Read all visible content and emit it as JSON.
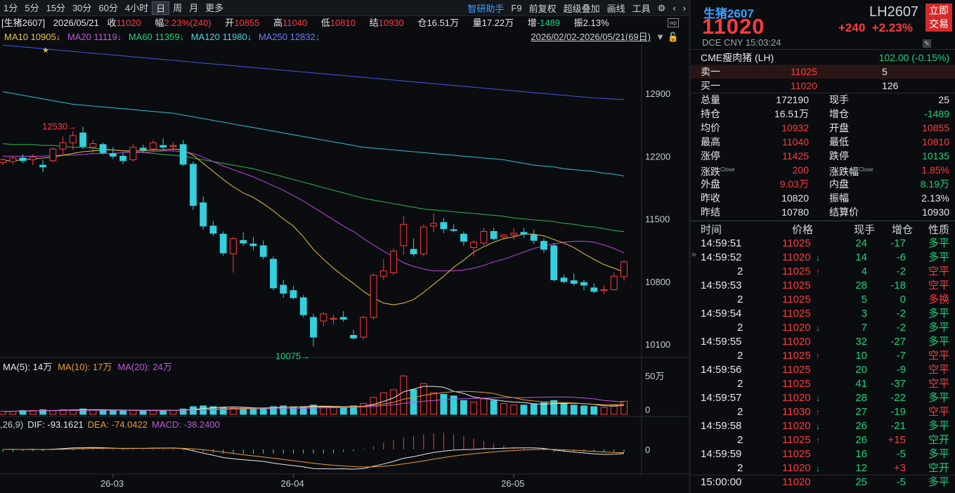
{
  "toolbar": {
    "timeframes": [
      "1分",
      "5分",
      "15分",
      "30分",
      "60分",
      "4小时",
      "日",
      "周",
      "月",
      "更多"
    ],
    "active": "日",
    "tools": [
      "智研助手",
      "F9",
      "前复权",
      "超级叠加",
      "画线",
      "工具"
    ]
  },
  "info": {
    "name": "[生猪2607]",
    "date": "2026/05/21",
    "close_label": "收",
    "close": "11020",
    "amp_label": "幅",
    "amp": "2.23%(240)",
    "open_label": "开",
    "open": "10855",
    "high_label": "高",
    "high": "11040",
    "low_label": "低",
    "low": "10810",
    "settle_label": "结",
    "settle": "10930",
    "oi_label": "仓",
    "oi": "16.51万",
    "vol_label": "量",
    "vol": "17.22万",
    "inc_label": "增",
    "inc": "-1489",
    "swing_label": "振",
    "swing": "2.13%"
  },
  "ma": {
    "ma10": "MA10 10905↓",
    "ma20": "MA20 11119↓",
    "ma60": "MA60 11359↓",
    "ma120": "MA120 11980↓",
    "ma250": "MA250 12832↓",
    "range": "2026/02/02-2026/05/21(69日)"
  },
  "yaxis": [
    "12900",
    "12200",
    "11500",
    "10800",
    "10100"
  ],
  "annot": {
    "high": "12530",
    "low": "10075"
  },
  "vol": {
    "label": "MA(5): 14万 MA(10): 17万 MA(20): 24万",
    "ma5": "MA(5): 14万",
    "ma10": "MA(10): 17万",
    "ma20": "MA(20): 24万",
    "axis_top": "50万",
    "axis_zero": "0"
  },
  "macd": {
    "prefix": ",26,9)",
    "dif": "DIF: -93.1621",
    "dea": "DEA: -74.0422",
    "macd": "MACD: -38.2400",
    "axis_zero": "0"
  },
  "xaxis": [
    "26-03",
    "26-04",
    "26-05"
  ],
  "chart_data": {
    "type": "candlestick",
    "candles": [
      [
        12130,
        12180,
        12100,
        12160
      ],
      [
        12140,
        12200,
        12110,
        12180
      ],
      [
        12180,
        12220,
        12120,
        12150
      ],
      [
        12160,
        12220,
        12100,
        12190
      ],
      [
        12100,
        12160,
        12020,
        12080
      ],
      [
        12150,
        12300,
        12130,
        12280
      ],
      [
        12280,
        12420,
        12200,
        12350
      ],
      [
        12350,
        12480,
        12270,
        12430
      ],
      [
        12460,
        12530,
        12280,
        12310
      ],
      [
        12300,
        12380,
        12240,
        12340
      ],
      [
        12330,
        12350,
        12220,
        12240
      ],
      [
        12230,
        12300,
        12170,
        12200
      ],
      [
        12200,
        12240,
        12110,
        12150
      ],
      [
        12160,
        12340,
        12140,
        12300
      ],
      [
        12290,
        12330,
        12240,
        12270
      ],
      [
        12280,
        12380,
        12250,
        12350
      ],
      [
        12320,
        12400,
        12270,
        12300
      ],
      [
        12310,
        12360,
        12250,
        12320
      ],
      [
        12330,
        12380,
        12090,
        12110
      ],
      [
        12110,
        12140,
        11600,
        11650
      ],
      [
        11680,
        11750,
        11380,
        11420
      ],
      [
        11420,
        11480,
        11310,
        11340
      ],
      [
        11330,
        11360,
        11090,
        11120
      ],
      [
        11110,
        11300,
        10900,
        11280
      ],
      [
        11260,
        11350,
        11200,
        11230
      ],
      [
        11220,
        11300,
        11150,
        11200
      ],
      [
        11200,
        11260,
        11050,
        11080
      ],
      [
        11050,
        11080,
        10700,
        10730
      ],
      [
        10760,
        10820,
        10620,
        10670
      ],
      [
        10700,
        10750,
        10600,
        10620
      ],
      [
        10620,
        10650,
        10400,
        10430
      ],
      [
        10400,
        10440,
        10075,
        10180
      ],
      [
        10360,
        10460,
        10300,
        10440
      ],
      [
        10380,
        10430,
        10320,
        10390
      ],
      [
        10400,
        10470,
        10350,
        10380
      ],
      [
        10200,
        10260,
        10150,
        10170
      ],
      [
        10180,
        10420,
        10150,
        10400
      ],
      [
        10400,
        10890,
        10370,
        10870
      ],
      [
        10860,
        11050,
        10820,
        10920
      ],
      [
        10900,
        11170,
        10870,
        11140
      ],
      [
        11200,
        11530,
        11100,
        11440
      ],
      [
        11160,
        11280,
        11080,
        11110
      ],
      [
        11110,
        11440,
        11080,
        11410
      ],
      [
        11420,
        11560,
        11350,
        11450
      ],
      [
        11460,
        11510,
        11340,
        11390
      ],
      [
        11380,
        11440,
        11350,
        11370
      ],
      [
        11330,
        11360,
        11200,
        11250
      ],
      [
        11180,
        11260,
        11080,
        11240
      ],
      [
        11230,
        11400,
        11200,
        11360
      ],
      [
        11360,
        11400,
        11260,
        11280
      ],
      [
        11300,
        11330,
        11270,
        11320
      ],
      [
        11320,
        11400,
        11260,
        11340
      ],
      [
        11350,
        11400,
        11290,
        11330
      ],
      [
        11320,
        11380,
        11220,
        11260
      ],
      [
        11250,
        11280,
        11120,
        11160
      ],
      [
        11200,
        11230,
        10800,
        10820
      ],
      [
        10840,
        10880,
        10780,
        10800
      ],
      [
        10810,
        10890,
        10750,
        10780
      ],
      [
        10790,
        10820,
        10700,
        10760
      ],
      [
        10730,
        10780,
        10670,
        10690
      ],
      [
        10700,
        10760,
        10660,
        10710
      ],
      [
        10710,
        10900,
        10700,
        10860
      ],
      [
        10855,
        11040,
        10810,
        11020
      ]
    ],
    "ma10": [
      12150,
      12150,
      12160,
      12170,
      12180,
      12190,
      12210,
      12230,
      12250,
      12260,
      12270,
      12270,
      12260,
      12260,
      12260,
      12270,
      12270,
      12280,
      12270,
      12210,
      12120,
      12030,
      11940,
      11860,
      11790,
      11740,
      11670,
      11590,
      11500,
      11420,
      11300,
      11160,
      11050,
      10950,
      10860,
      10780,
      10690,
      10620,
      10560,
      10540,
      10560,
      10600,
      10680,
      10770,
      10860,
      10960,
      11040,
      11130,
      11190,
      11240,
      11280,
      11300,
      11330,
      11330,
      11310,
      11270,
      11230,
      11180,
      11110,
      11050,
      10990,
      10950,
      10905
    ],
    "ma20": [
      12200,
      12200,
      12200,
      12200,
      12200,
      12210,
      12210,
      12210,
      12220,
      12230,
      12230,
      12230,
      12240,
      12240,
      12240,
      12250,
      12260,
      12260,
      12250,
      12230,
      12190,
      12140,
      12090,
      12050,
      12010,
      11970,
      11920,
      11870,
      11820,
      11760,
      11700,
      11630,
      11560,
      11490,
      11420,
      11360,
      11280,
      11210,
      11140,
      11080,
      11010,
      10970,
      10940,
      10920,
      10920,
      10920,
      10930,
      10950,
      10980,
      11020,
      11050,
      11090,
      11130,
      11170,
      11200,
      11220,
      11240,
      11250,
      11250,
      11240,
      11210,
      11170,
      11119
    ],
    "ma60": [
      12340,
      12330,
      12330,
      12330,
      12320,
      12320,
      12310,
      12300,
      12300,
      12290,
      12280,
      12270,
      12260,
      12250,
      12240,
      12230,
      12220,
      12210,
      12200,
      12180,
      12160,
      12140,
      12120,
      12100,
      12080,
      12060,
      12030,
      12000,
      11970,
      11940,
      11910,
      11880,
      11850,
      11820,
      11790,
      11760,
      11730,
      11710,
      11690,
      11670,
      11650,
      11630,
      11610,
      11600,
      11590,
      11580,
      11570,
      11560,
      11550,
      11540,
      11530,
      11510,
      11500,
      11490,
      11480,
      11470,
      11450,
      11440,
      11420,
      11410,
      11390,
      11370,
      11359
    ],
    "ma120": [
      12920,
      12900,
      12880,
      12860,
      12840,
      12820,
      12800,
      12780,
      12770,
      12760,
      12750,
      12740,
      12730,
      12720,
      12710,
      12700,
      12690,
      12680,
      12660,
      12640,
      12620,
      12600,
      12580,
      12560,
      12540,
      12520,
      12500,
      12480,
      12460,
      12440,
      12420,
      12400,
      12380,
      12360,
      12340,
      12320,
      12300,
      12290,
      12280,
      12270,
      12260,
      12250,
      12240,
      12230,
      12220,
      12210,
      12200,
      12190,
      12180,
      12170,
      12160,
      12140,
      12120,
      12100,
      12090,
      12080,
      12060,
      12050,
      12040,
      12030,
      12010,
      12000,
      11980
    ],
    "ma250": [
      13440,
      13430,
      13420,
      13410,
      13400,
      13390,
      13380,
      13370,
      13360,
      13350,
      13340,
      13330,
      13320,
      13310,
      13300,
      13290,
      13280,
      13270,
      13260,
      13250,
      13240,
      13230,
      13220,
      13210,
      13200,
      13190,
      13180,
      13170,
      13160,
      13150,
      13140,
      13130,
      13120,
      13110,
      13100,
      13090,
      13080,
      13070,
      13060,
      13050,
      13040,
      13030,
      13020,
      13010,
      13000,
      12990,
      12980,
      12970,
      12960,
      12950,
      12940,
      12930,
      12920,
      12910,
      12900,
      12890,
      12880,
      12870,
      12860,
      12850,
      12845,
      12838,
      12832
    ],
    "ylim": [
      10000,
      13450
    ],
    "volume": [
      4,
      4,
      5,
      5,
      6,
      5,
      6,
      6,
      7,
      6,
      5,
      5,
      5,
      5,
      5,
      5,
      5,
      5,
      7,
      10,
      11,
      10,
      9,
      8,
      8,
      8,
      8,
      10,
      11,
      10,
      10,
      12,
      10,
      9,
      9,
      11,
      14,
      22,
      28,
      32,
      50,
      32,
      40,
      28,
      26,
      24,
      18,
      16,
      20,
      18,
      14,
      12,
      12,
      13,
      15,
      18,
      14,
      12,
      11,
      10,
      9,
      12,
      17
    ],
    "macd_hist": [
      -3,
      -3,
      -2,
      -2,
      -2,
      -1,
      -1,
      -1,
      -1,
      -1,
      -1,
      -1,
      -1,
      -1,
      -1,
      -1,
      -1,
      -1,
      -1,
      -2,
      -3,
      -4,
      -5,
      -5,
      -5,
      -5,
      -5,
      -5,
      -5,
      -5,
      -5,
      -5,
      -5,
      -4,
      -3,
      -2,
      1,
      4,
      8,
      11,
      14,
      16,
      18,
      19,
      20,
      18,
      16,
      13,
      10,
      7,
      5,
      3,
      2,
      1,
      -1,
      -3,
      -3,
      -3,
      -3,
      -3,
      -3,
      -3,
      -3
    ]
  },
  "quote": {
    "name": "生猪2607",
    "code": "LH2607",
    "price": "11020",
    "chg": "+240",
    "pct": "+2.23%",
    "trade": [
      "立即",
      "交易"
    ],
    "sub": "DCE  CNY  15:03:24",
    "cme_label": "CME瘦肉猪 (LH)",
    "cme": "102.00 (-0.15%)",
    "ask_label": "卖一",
    "ask": "11025",
    "ask_vol": "5",
    "bid_label": "买一",
    "bid": "11020",
    "bid_vol": "126",
    "stats": [
      {
        "l1": "总量",
        "v1": "172190",
        "c1": "w",
        "l2": "现手",
        "v2": "25",
        "c2": "w"
      },
      {
        "l1": "持仓",
        "v1": "16.51万",
        "c1": "w",
        "l2": "增仓",
        "v2": "-1489",
        "c2": "g"
      },
      {
        "l1": "均价",
        "v1": "10932",
        "c1": "r",
        "l2": "开盘",
        "v2": "10855",
        "c2": "r"
      },
      {
        "l1": "最高",
        "v1": "11040",
        "c1": "r",
        "l2": "最低",
        "v2": "10810",
        "c2": "r"
      },
      {
        "l1": "涨停",
        "v1": "11425",
        "c1": "r",
        "l2": "跌停",
        "v2": "10135",
        "c2": "g"
      },
      {
        "l1": "涨跌",
        "s1": "Close",
        "v1": "200",
        "c1": "r",
        "l2": "涨跌幅",
        "s2": "Close",
        "v2": "1.85%",
        "c2": "r"
      },
      {
        "l1": "外盘",
        "v1": "9.03万",
        "c1": "r",
        "l2": "内盘",
        "v2": "8.19万",
        "c2": "g"
      },
      {
        "l1": "昨收",
        "v1": "10820",
        "c1": "w",
        "l2": "振幅",
        "v2": "2.13%",
        "c2": "w"
      },
      {
        "l1": "昨结",
        "v1": "10780",
        "c1": "w",
        "l2": "结算价",
        "v2": "10930",
        "c2": "w"
      }
    ]
  },
  "ticks": {
    "headers": [
      "时间",
      "价格",
      "现手",
      "增仓",
      "性质"
    ],
    "rows": [
      {
        "t": "14:59:51",
        "p": "11025",
        "a": "",
        "q": "24",
        "d": "-17",
        "n": "多平",
        "pc": "r",
        "nc": "g"
      },
      {
        "t": "14:59:52",
        "p": "11020",
        "a": "↓",
        "q": "14",
        "d": "-6",
        "n": "多平",
        "pc": "r",
        "nc": "g"
      },
      {
        "t": "2",
        "p": "11025",
        "a": "↑",
        "q": "4",
        "d": "-2",
        "n": "空平",
        "pc": "r",
        "nc": "r"
      },
      {
        "t": "14:59:53",
        "p": "11025",
        "a": "",
        "q": "28",
        "d": "-18",
        "n": "空平",
        "pc": "r",
        "nc": "r"
      },
      {
        "t": "2",
        "p": "11025",
        "a": "",
        "q": "5",
        "d": "0",
        "n": "多换",
        "pc": "r",
        "nc": "r"
      },
      {
        "t": "14:59:54",
        "p": "11025",
        "a": "",
        "q": "3",
        "d": "-2",
        "n": "多平",
        "pc": "r",
        "nc": "g"
      },
      {
        "t": "2",
        "p": "11020",
        "a": "↓",
        "q": "7",
        "d": "-2",
        "n": "多平",
        "pc": "r",
        "nc": "g"
      },
      {
        "t": "14:59:55",
        "p": "11020",
        "a": "",
        "q": "32",
        "d": "-27",
        "n": "多平",
        "pc": "r",
        "nc": "g"
      },
      {
        "t": "2",
        "p": "11025",
        "a": "↑",
        "q": "10",
        "d": "-7",
        "n": "空平",
        "pc": "r",
        "nc": "r"
      },
      {
        "t": "14:59:56",
        "p": "11025",
        "a": "",
        "q": "20",
        "d": "-9",
        "n": "空平",
        "pc": "r",
        "nc": "r"
      },
      {
        "t": "2",
        "p": "11025",
        "a": "",
        "q": "41",
        "d": "-37",
        "n": "空平",
        "pc": "r",
        "nc": "r"
      },
      {
        "t": "14:59:57",
        "p": "11020",
        "a": "↓",
        "q": "28",
        "d": "-22",
        "n": "多平",
        "pc": "r",
        "nc": "g"
      },
      {
        "t": "2",
        "p": "11030",
        "a": "↑",
        "q": "27",
        "d": "-19",
        "n": "空平",
        "pc": "r",
        "nc": "r"
      },
      {
        "t": "14:59:58",
        "p": "11020",
        "a": "↓",
        "q": "26",
        "d": "-21",
        "n": "多平",
        "pc": "r",
        "nc": "g"
      },
      {
        "t": "2",
        "p": "11025",
        "a": "↑",
        "q": "26",
        "d": "+15",
        "n": "空开",
        "pc": "r",
        "nc": "g"
      },
      {
        "t": "14:59:59",
        "p": "11025",
        "a": "",
        "q": "16",
        "d": "-5",
        "n": "多平",
        "pc": "r",
        "nc": "g"
      },
      {
        "t": "2",
        "p": "11020",
        "a": "↓",
        "q": "12",
        "d": "+3",
        "n": "空开",
        "pc": "r",
        "nc": "g"
      },
      {
        "t": "15:00:00",
        "p": "11020",
        "a": "",
        "q": "25",
        "d": "-5",
        "n": "多平",
        "pc": "r",
        "nc": "g"
      }
    ]
  }
}
